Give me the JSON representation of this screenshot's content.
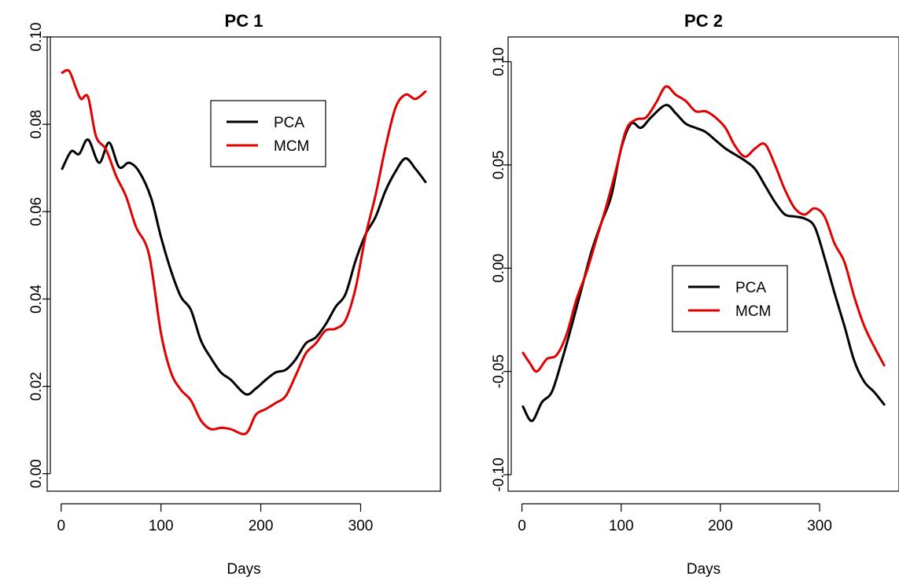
{
  "colors": {
    "PCA": "#000000",
    "MCM": "#e00000"
  },
  "chart_data": [
    {
      "type": "line",
      "title": "PC 1",
      "xlabel": "Days",
      "ylabel": "",
      "xlim": [
        -14,
        380
      ],
      "ylim": [
        -0.004,
        0.1
      ],
      "xticks": [
        0,
        100,
        200,
        300
      ],
      "xtick_labels": [
        "0",
        "100",
        "200",
        "300"
      ],
      "yticks": [
        0.0,
        0.02,
        0.04,
        0.06,
        0.08,
        0.1
      ],
      "ytick_labels": [
        "0.00",
        "0.02",
        "0.04",
        "0.06",
        "0.08",
        "0.10"
      ],
      "legend": {
        "placement": "top-center",
        "entries": [
          "PCA",
          "MCM"
        ]
      },
      "grid": false,
      "series": [
        {
          "name": "PCA",
          "color": "#000000",
          "x": [
            1,
            10,
            18,
            27,
            38,
            48,
            58,
            68,
            78,
            90,
            100,
            110,
            120,
            130,
            140,
            150,
            160,
            170,
            185,
            195,
            205,
            215,
            225,
            235,
            245,
            255,
            265,
            275,
            285,
            295,
            305,
            315,
            325,
            335,
            345,
            355,
            365
          ],
          "y": [
            0.0698,
            0.0738,
            0.0732,
            0.0765,
            0.0712,
            0.0758,
            0.0702,
            0.0712,
            0.0692,
            0.0632,
            0.0542,
            0.0465,
            0.0405,
            0.0375,
            0.0305,
            0.0265,
            0.0232,
            0.0215,
            0.0182,
            0.0195,
            0.0215,
            0.0232,
            0.0238,
            0.0262,
            0.0298,
            0.0312,
            0.0342,
            0.0382,
            0.0412,
            0.0488,
            0.0548,
            0.0588,
            0.0648,
            0.0692,
            0.0722,
            0.0698,
            0.0668
          ]
        },
        {
          "name": "MCM",
          "color": "#e00000",
          "x": [
            1,
            8,
            15,
            20,
            27,
            35,
            45,
            55,
            65,
            75,
            88,
            100,
            110,
            120,
            130,
            140,
            150,
            160,
            170,
            185,
            195,
            205,
            215,
            225,
            235,
            245,
            255,
            265,
            275,
            285,
            295,
            305,
            315,
            325,
            335,
            345,
            355,
            365
          ],
          "y": [
            0.0918,
            0.0922,
            0.0882,
            0.0858,
            0.0862,
            0.0772,
            0.0742,
            0.0682,
            0.0635,
            0.0565,
            0.0502,
            0.0322,
            0.0232,
            0.0192,
            0.0168,
            0.0122,
            0.0102,
            0.0105,
            0.0102,
            0.0092,
            0.0135,
            0.0148,
            0.0162,
            0.0178,
            0.0225,
            0.0275,
            0.0298,
            0.0328,
            0.0332,
            0.0352,
            0.0425,
            0.0545,
            0.0638,
            0.0748,
            0.0838,
            0.0868,
            0.0858,
            0.0875
          ]
        }
      ]
    },
    {
      "type": "line",
      "title": "PC 2",
      "xlabel": "Days",
      "ylabel": "",
      "xlim": [
        -14,
        380
      ],
      "ylim": [
        -0.108,
        0.112
      ],
      "xticks": [
        0,
        100,
        200,
        300
      ],
      "xtick_labels": [
        "0",
        "100",
        "200",
        "300"
      ],
      "yticks": [
        -0.1,
        -0.05,
        0.0,
        0.05,
        0.1
      ],
      "ytick_labels": [
        "-0.10",
        "-0.05",
        "0.00",
        "0.05",
        "0.10"
      ],
      "legend": {
        "placement": "center-right",
        "entries": [
          "PCA",
          "MCM"
        ]
      },
      "grid": false,
      "series": [
        {
          "name": "PCA",
          "color": "#000000",
          "x": [
            1,
            10,
            20,
            30,
            40,
            50,
            60,
            70,
            80,
            90,
            100,
            110,
            120,
            130,
            145,
            155,
            165,
            175,
            185,
            195,
            205,
            215,
            225,
            235,
            245,
            255,
            265,
            275,
            285,
            295,
            305,
            315,
            325,
            335,
            345,
            355,
            365
          ],
          "y": [
            -0.067,
            -0.074,
            -0.065,
            -0.06,
            -0.045,
            -0.028,
            -0.01,
            0.008,
            0.022,
            0.035,
            0.058,
            0.07,
            0.068,
            0.073,
            0.079,
            0.075,
            0.07,
            0.068,
            0.066,
            0.062,
            0.058,
            0.055,
            0.052,
            0.048,
            0.04,
            0.032,
            0.026,
            0.025,
            0.024,
            0.02,
            0.005,
            -0.012,
            -0.028,
            -0.045,
            -0.055,
            -0.06,
            -0.066
          ]
        },
        {
          "name": "MCM",
          "color": "#e00000",
          "x": [
            1,
            8,
            15,
            25,
            35,
            45,
            55,
            65,
            75,
            85,
            95,
            105,
            115,
            125,
            135,
            145,
            155,
            165,
            175,
            185,
            195,
            205,
            215,
            225,
            235,
            245,
            255,
            265,
            275,
            285,
            295,
            305,
            315,
            325,
            335,
            345,
            355,
            365
          ],
          "y": [
            -0.041,
            -0.046,
            -0.05,
            -0.044,
            -0.042,
            -0.032,
            -0.015,
            -0.002,
            0.014,
            0.03,
            0.048,
            0.067,
            0.072,
            0.073,
            0.08,
            0.088,
            0.084,
            0.081,
            0.076,
            0.076,
            0.073,
            0.068,
            0.059,
            0.054,
            0.058,
            0.06,
            0.05,
            0.038,
            0.029,
            0.026,
            0.029,
            0.025,
            0.012,
            0.003,
            -0.014,
            -0.028,
            -0.038,
            -0.047
          ]
        }
      ]
    }
  ]
}
